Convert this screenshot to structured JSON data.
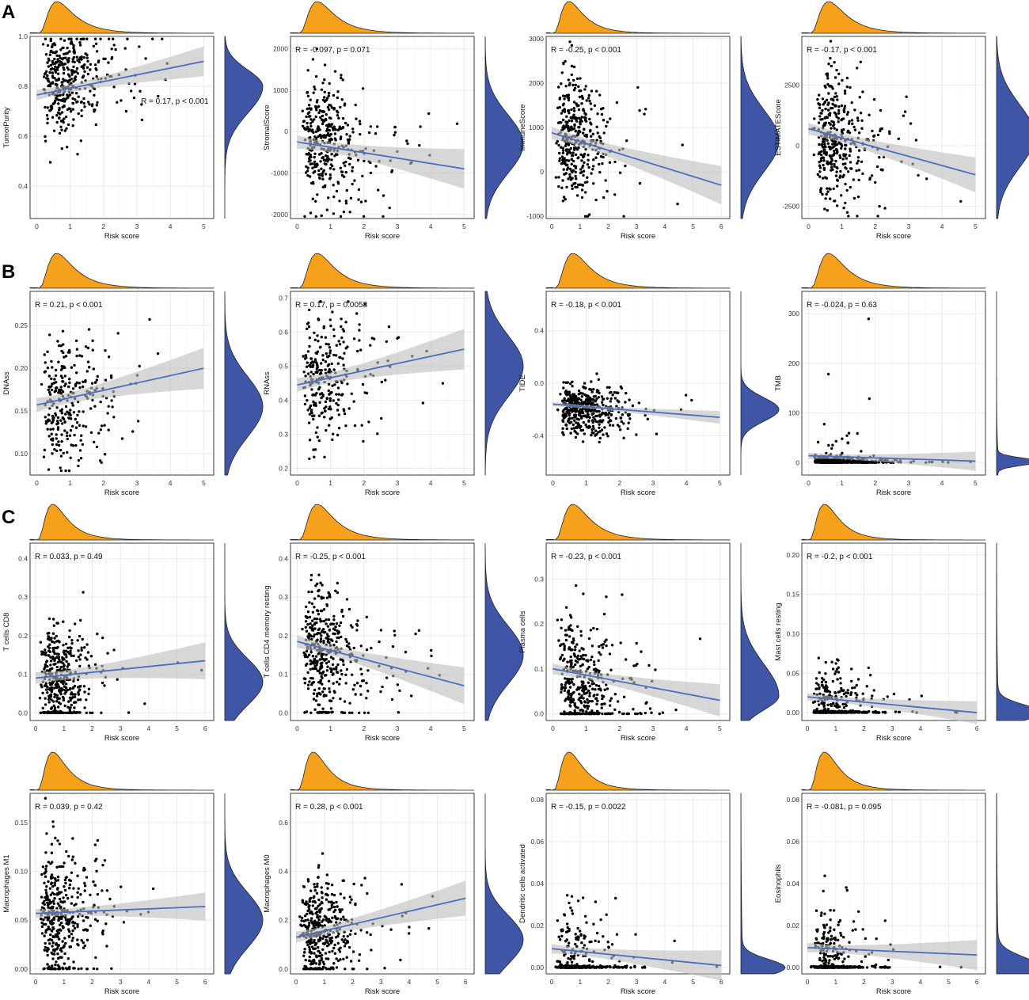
{
  "figure": {
    "section_labels": [
      "A",
      "B",
      "C"
    ],
    "colors": {
      "top_density": "#f5a11c",
      "side_density": "#3f56a6",
      "regression_line": "#4a6fbe",
      "confidence_band": "#bdbdbd",
      "points": "#000000",
      "grid": "#ebebeb"
    }
  },
  "chart_data": [
    {
      "type": "scatter",
      "row": 0,
      "col": 0,
      "ylabel": "TumorPurity",
      "xlabel": "Risk score",
      "xlim": [
        -0.2,
        5.3
      ],
      "ylim": [
        0.27,
        1.0
      ],
      "xticks": [
        0,
        1,
        2,
        3,
        4,
        5
      ],
      "yticks": [
        0.4,
        0.6,
        0.8,
        1.0
      ],
      "ytick_labels": [
        "0.4",
        "0.6",
        "0.8",
        "1.0"
      ],
      "annotation": "R = 0.17, p < 0.001",
      "annotation_pos": "mid-right",
      "line": {
        "x": [
          0,
          5
        ],
        "y": [
          0.765,
          0.9
        ]
      },
      "band": 0.025,
      "dist": {
        "mean": 0.82,
        "sd": 0.1,
        "min": 0.28,
        "max": 0.99,
        "zeroFrac": 0
      },
      "n": 380,
      "seed": 11,
      "xmax": 5.0,
      "sideDensity": {
        "peak": 0.8,
        "width": 0.085,
        "skew": "left"
      }
    },
    {
      "type": "scatter",
      "row": 0,
      "col": 1,
      "ylabel": "StromalScore",
      "xlabel": "Risk score",
      "xlim": [
        -0.2,
        5.3
      ],
      "ylim": [
        -2100,
        2300
      ],
      "xticks": [
        0,
        1,
        2,
        3,
        4,
        5
      ],
      "yticks": [
        -2000,
        -1000,
        0,
        1000,
        2000
      ],
      "ytick_labels": [
        "-2000",
        "-1000",
        "0",
        "1000",
        "2000"
      ],
      "annotation": "R = -0.097, p = 0.071",
      "annotation_pos": "top-left",
      "line": {
        "x": [
          0,
          5
        ],
        "y": [
          -250,
          -900
        ]
      },
      "band": 200,
      "dist": {
        "mean": -300,
        "sd": 700,
        "min": -2050,
        "max": 2000,
        "zeroFrac": 0
      },
      "n": 380,
      "seed": 23,
      "xmax": 5.0,
      "sideDensity": {
        "peak": -300,
        "width": 700
      }
    },
    {
      "type": "scatter",
      "row": 0,
      "col": 2,
      "ylabel": "ImmuneScore",
      "xlabel": "Risk score",
      "xlim": [
        -0.2,
        6.3
      ],
      "ylim": [
        -1050,
        3050
      ],
      "xticks": [
        0,
        1,
        2,
        3,
        4,
        5,
        6
      ],
      "yticks": [
        -1000,
        0,
        1000,
        2000,
        3000
      ],
      "ytick_labels": [
        "-1000",
        "0",
        "1000",
        "2000",
        "3000"
      ],
      "annotation": "R = -0.25, p < 0.001",
      "annotation_pos": "top-left",
      "line": {
        "x": [
          0,
          6
        ],
        "y": [
          880,
          -300
        ]
      },
      "band": 180,
      "dist": {
        "mean": 700,
        "sd": 700,
        "min": -1000,
        "max": 2950,
        "zeroFrac": 0
      },
      "n": 380,
      "seed": 37,
      "xmax": 6.0,
      "sideDensity": {
        "peak": 700,
        "width": 700
      }
    },
    {
      "type": "scatter",
      "row": 0,
      "col": 3,
      "ylabel": "ESTIMATEScore",
      "xlabel": "Risk score",
      "xlim": [
        -0.2,
        5.3
      ],
      "ylim": [
        -3000,
        4500
      ],
      "xticks": [
        0,
        1,
        2,
        3,
        4,
        5
      ],
      "yticks": [
        -2500,
        0,
        2500
      ],
      "ytick_labels": [
        "-2500",
        "0",
        "2500"
      ],
      "annotation": "R = -0.17, p < 0.001",
      "annotation_pos": "top-left",
      "line": {
        "x": [
          0,
          5
        ],
        "y": [
          700,
          -1200
        ]
      },
      "band": 300,
      "dist": {
        "mean": 300,
        "sd": 1300,
        "min": -2900,
        "max": 4300,
        "zeroFrac": 0
      },
      "n": 380,
      "seed": 41,
      "xmax": 5.0,
      "sideDensity": {
        "peak": 400,
        "width": 1300
      }
    },
    {
      "type": "scatter",
      "row": 1,
      "col": 0,
      "ylabel": "DNAss",
      "xlabel": "Risk score",
      "xlim": [
        -0.2,
        5.3
      ],
      "ylim": [
        0.075,
        0.29
      ],
      "xticks": [
        0,
        1,
        2,
        3,
        4,
        5
      ],
      "yticks": [
        0.1,
        0.15,
        0.2,
        0.25
      ],
      "ytick_labels": [
        "0.10",
        "0.15",
        "0.20",
        "0.25"
      ],
      "annotation": "R = 0.21, p < 0.001",
      "annotation_pos": "top-left",
      "line": {
        "x": [
          0,
          5
        ],
        "y": [
          0.157,
          0.2
        ]
      },
      "band": 0.01,
      "dist": {
        "mean": 0.16,
        "sd": 0.035,
        "min": 0.08,
        "max": 0.285,
        "zeroFrac": 0
      },
      "n": 280,
      "seed": 53,
      "xmax": 5.0,
      "sideDensity": {
        "peak": 0.155,
        "width": 0.035
      }
    },
    {
      "type": "scatter",
      "row": 1,
      "col": 1,
      "ylabel": "RNAss",
      "xlabel": "Risk score",
      "xlim": [
        -0.2,
        5.3
      ],
      "ylim": [
        0.18,
        0.72
      ],
      "xticks": [
        0,
        1,
        2,
        3,
        4,
        5
      ],
      "yticks": [
        0.2,
        0.3,
        0.4,
        0.5,
        0.6,
        0.7
      ],
      "ytick_labels": [
        "0.2",
        "0.3",
        "0.4",
        "0.5",
        "0.6",
        "0.7"
      ],
      "annotation": "R = 0.17, p = 0.0058",
      "annotation_pos": "top-left",
      "line": {
        "x": [
          0,
          5
        ],
        "y": [
          0.445,
          0.55
        ]
      },
      "band": 0.025,
      "dist": {
        "mean": 0.47,
        "sd": 0.095,
        "min": 0.19,
        "max": 0.69,
        "zeroFrac": 0
      },
      "n": 280,
      "seed": 67,
      "xmax": 5.0,
      "sideDensity": {
        "peak": 0.5,
        "width": 0.09
      }
    },
    {
      "type": "scatter",
      "row": 1,
      "col": 2,
      "ylabel": "TIDE",
      "xlabel": "Risk score",
      "xlim": [
        -0.2,
        5.3
      ],
      "ylim": [
        -0.7,
        0.7
      ],
      "xticks": [
        0,
        1,
        2,
        3,
        4,
        5
      ],
      "yticks": [
        -0.4,
        0.0,
        0.4
      ],
      "ytick_labels": [
        "-0.4",
        "0.0",
        "0.4"
      ],
      "annotation": "R = -0.18, p < 0.001",
      "annotation_pos": "top-left",
      "line": {
        "x": [
          0,
          5
        ],
        "y": [
          -0.16,
          -0.26
        ]
      },
      "band": 0.02,
      "dist": {
        "mean": -0.2,
        "sd": 0.1,
        "min": -0.6,
        "max": 0.1,
        "zeroFrac": 0
      },
      "n": 440,
      "seed": 79,
      "xmax": 5.0,
      "sideDensity": {
        "peak": -0.2,
        "width": 0.09
      }
    },
    {
      "type": "scatter",
      "row": 1,
      "col": 3,
      "ylabel": "TMB",
      "xlabel": "Risk score",
      "xlim": [
        -0.2,
        5.3
      ],
      "ylim": [
        -25,
        345
      ],
      "xticks": [
        0,
        1,
        2,
        3,
        4,
        5
      ],
      "yticks": [
        0,
        100,
        200,
        300
      ],
      "ytick_labels": [
        "0",
        "100",
        "200",
        "300"
      ],
      "annotation": "R = -0.024, p = 0.63",
      "annotation_pos": "top-left",
      "line": {
        "x": [
          0,
          5
        ],
        "y": [
          14,
          3
        ]
      },
      "band": 8,
      "dist": {
        "mean": 5,
        "sd": 4,
        "min": 0,
        "max": 330,
        "zeroFrac": 0.6,
        "tail": 0.12,
        "tailMax": 90
      },
      "n": 460,
      "seed": 97,
      "xmax": 5.0,
      "sideDensity": {
        "peak": 2,
        "width": 7,
        "spike": true
      }
    },
    {
      "type": "scatter",
      "row": 2,
      "col": 0,
      "ylabel": "T cells CD8",
      "xlabel": "Risk score",
      "xlim": [
        -0.2,
        6.3
      ],
      "ylim": [
        -0.02,
        0.44
      ],
      "xticks": [
        0,
        1,
        2,
        3,
        4,
        5,
        6
      ],
      "yticks": [
        0.0,
        0.1,
        0.2,
        0.3,
        0.4
      ],
      "ytick_labels": [
        "0.0",
        "0.1",
        "0.2",
        "0.3",
        "0.4"
      ],
      "annotation": "R = 0.033, p = 0.49",
      "annotation_pos": "top-left",
      "line": {
        "x": [
          0,
          6
        ],
        "y": [
          0.09,
          0.135
        ]
      },
      "band": 0.02,
      "dist": {
        "mean": 0.09,
        "sd": 0.07,
        "min": 0,
        "max": 0.42,
        "zeroFrac": 0.05
      },
      "n": 420,
      "seed": 101,
      "xmax": 6.0,
      "sideDensity": {
        "peak": 0.08,
        "width": 0.06
      }
    },
    {
      "type": "scatter",
      "row": 2,
      "col": 1,
      "ylabel": "T cells CD4 memory resting",
      "xlabel": "Risk score",
      "xlim": [
        -0.2,
        5.3
      ],
      "ylim": [
        -0.02,
        0.44
      ],
      "xticks": [
        0,
        1,
        2,
        3,
        4,
        5
      ],
      "yticks": [
        0.0,
        0.1,
        0.2,
        0.3,
        0.4
      ],
      "ytick_labels": [
        "0.0",
        "0.1",
        "0.2",
        "0.3",
        "0.4"
      ],
      "annotation": "R = -0.25, p < 0.001",
      "annotation_pos": "top-left",
      "line": {
        "x": [
          0,
          5
        ],
        "y": [
          0.185,
          0.07
        ]
      },
      "band": 0.02,
      "dist": {
        "mean": 0.16,
        "sd": 0.08,
        "min": 0,
        "max": 0.42,
        "zeroFrac": 0.06
      },
      "n": 420,
      "seed": 113,
      "xmax": 5.0,
      "sideDensity": {
        "peak": 0.15,
        "width": 0.075
      }
    },
    {
      "type": "scatter",
      "row": 2,
      "col": 2,
      "ylabel": "Plasma cells",
      "xlabel": "Risk score",
      "xlim": [
        -0.2,
        5.3
      ],
      "ylim": [
        -0.015,
        0.38
      ],
      "xticks": [
        0,
        1,
        2,
        3,
        4,
        5
      ],
      "yticks": [
        0.0,
        0.1,
        0.2,
        0.3
      ],
      "ytick_labels": [
        "0.0",
        "0.1",
        "0.2",
        "0.3"
      ],
      "annotation": "R = -0.23, p < 0.001",
      "annotation_pos": "top-left",
      "line": {
        "x": [
          0,
          5
        ],
        "y": [
          0.1,
          0.03
        ]
      },
      "band": 0.015,
      "dist": {
        "mean": 0.07,
        "sd": 0.07,
        "min": 0,
        "max": 0.37,
        "zeroFrac": 0.1
      },
      "n": 420,
      "seed": 127,
      "xmax": 5.0,
      "sideDensity": {
        "peak": 0.04,
        "width": 0.05,
        "skew": "right"
      }
    },
    {
      "type": "scatter",
      "row": 2,
      "col": 3,
      "ylabel": "Mast cells resting",
      "xlabel": "Risk score",
      "xlim": [
        -0.2,
        6.3
      ],
      "ylim": [
        -0.01,
        0.215
      ],
      "xticks": [
        0,
        1,
        2,
        3,
        4,
        5,
        6
      ],
      "yticks": [
        0.0,
        0.05,
        0.1,
        0.15,
        0.2
      ],
      "ytick_labels": [
        "0.00",
        "0.05",
        "0.10",
        "0.15",
        "0.20"
      ],
      "annotation": "R = -0.2, p < 0.001",
      "annotation_pos": "top-left",
      "line": {
        "x": [
          0,
          6
        ],
        "y": [
          0.02,
          0.0
        ]
      },
      "band": 0.006,
      "dist": {
        "mean": 0.02,
        "sd": 0.02,
        "min": 0,
        "max": 0.21,
        "zeroFrac": 0.55
      },
      "n": 440,
      "seed": 131,
      "xmax": 6.0,
      "sideDensity": {
        "peak": 0.0,
        "width": 0.01,
        "spike": true
      }
    },
    {
      "type": "scatter",
      "row": 3,
      "col": 0,
      "ylabel": "Macrophages M1",
      "xlabel": "Risk score",
      "xlim": [
        -0.2,
        6.3
      ],
      "ylim": [
        -0.005,
        0.18
      ],
      "xticks": [
        0,
        1,
        2,
        3,
        4,
        5,
        6
      ],
      "yticks": [
        0.0,
        0.05,
        0.1,
        0.15
      ],
      "ytick_labels": [
        "0.00",
        "0.05",
        "0.10",
        "0.15"
      ],
      "annotation": "R = 0.039, p = 0.42",
      "annotation_pos": "top-left",
      "line": {
        "x": [
          0,
          6
        ],
        "y": [
          0.057,
          0.064
        ]
      },
      "band": 0.006,
      "dist": {
        "mean": 0.055,
        "sd": 0.03,
        "min": 0,
        "max": 0.175,
        "zeroFrac": 0.03
      },
      "n": 420,
      "seed": 149,
      "xmax": 6.0,
      "sideDensity": {
        "peak": 0.05,
        "width": 0.028
      }
    },
    {
      "type": "scatter",
      "row": 3,
      "col": 1,
      "ylabel": "Macrophages M0",
      "xlabel": "Risk score",
      "xlim": [
        -0.2,
        6.3
      ],
      "ylim": [
        -0.02,
        0.72
      ],
      "xticks": [
        0,
        1,
        2,
        3,
        4,
        5,
        6
      ],
      "yticks": [
        0.0,
        0.2,
        0.4,
        0.6
      ],
      "ytick_labels": [
        "0.0",
        "0.2",
        "0.4",
        "0.6"
      ],
      "annotation": "R = 0.28, p < 0.001",
      "annotation_pos": "top-left",
      "line": {
        "x": [
          0,
          6
        ],
        "y": [
          0.13,
          0.29
        ]
      },
      "band": 0.03,
      "dist": {
        "mean": 0.15,
        "sd": 0.11,
        "min": 0,
        "max": 0.68,
        "zeroFrac": 0.02
      },
      "n": 420,
      "seed": 151,
      "xmax": 6.0,
      "sideDensity": {
        "peak": 0.12,
        "width": 0.1
      }
    },
    {
      "type": "scatter",
      "row": 3,
      "col": 2,
      "ylabel": "Dendritic cells activated",
      "xlabel": "Risk score",
      "xlim": [
        -0.2,
        6.3
      ],
      "ylim": [
        -0.003,
        0.083
      ],
      "xticks": [
        0,
        1,
        2,
        3,
        4,
        5,
        6
      ],
      "yticks": [
        0.0,
        0.02,
        0.04,
        0.06,
        0.08
      ],
      "ytick_labels": [
        "0.00",
        "0.02",
        "0.04",
        "0.06",
        "0.08"
      ],
      "annotation": "R = -0.15, p = 0.0022",
      "annotation_pos": "top-left",
      "line": {
        "x": [
          0,
          6
        ],
        "y": [
          0.009,
          0.001
        ]
      },
      "band": 0.003,
      "dist": {
        "mean": 0.008,
        "sd": 0.012,
        "min": 0,
        "max": 0.081,
        "zeroFrac": 0.6
      },
      "n": 440,
      "seed": 163,
      "xmax": 6.0,
      "sideDensity": {
        "peak": 0.0,
        "width": 0.004,
        "spike": true
      }
    },
    {
      "type": "scatter",
      "row": 3,
      "col": 3,
      "ylabel": "Eosinophils",
      "xlabel": "Risk score",
      "xlim": [
        -0.2,
        6.3
      ],
      "ylim": [
        -0.003,
        0.083
      ],
      "xticks": [
        0,
        1,
        2,
        3,
        4,
        5,
        6
      ],
      "yticks": [
        0.0,
        0.02,
        0.04,
        0.06,
        0.08
      ],
      "ytick_labels": [
        "0.00",
        "0.02",
        "0.04",
        "0.06",
        "0.08"
      ],
      "annotation": "R = -0.081, p = 0.095",
      "annotation_pos": "top-left",
      "line": {
        "x": [
          0,
          6
        ],
        "y": [
          0.0095,
          0.006
        ]
      },
      "band": 0.003,
      "dist": {
        "mean": 0.008,
        "sd": 0.012,
        "min": 0,
        "max": 0.081,
        "zeroFrac": 0.6
      },
      "n": 440,
      "seed": 173,
      "xmax": 6.0,
      "sideDensity": {
        "peak": 0.0,
        "width": 0.005,
        "spike": true
      }
    }
  ]
}
